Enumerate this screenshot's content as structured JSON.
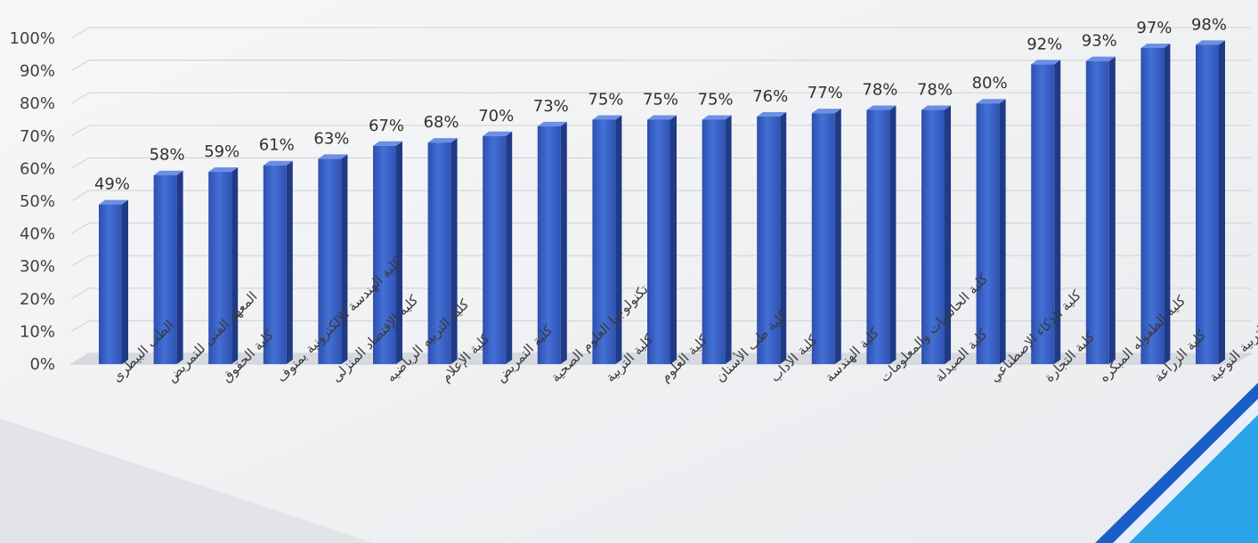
{
  "chart_data": {
    "type": "bar",
    "title": "",
    "xlabel": "",
    "ylabel": "",
    "ylim": [
      0,
      100
    ],
    "yticks": [
      0,
      10,
      20,
      30,
      40,
      50,
      60,
      70,
      80,
      90,
      100
    ],
    "ytick_labels": [
      "0%",
      "10%",
      "20%",
      "30%",
      "40%",
      "50%",
      "60%",
      "70%",
      "80%",
      "90%",
      "100%"
    ],
    "grid": true,
    "legend": "none",
    "bar_color": "#3a5fc4",
    "categories": [
      "الطب البيطرى",
      "المعهد الفنى للتمريض",
      "كلية الحقوق",
      "كلية الهندسة الإلكترونية بمنوف",
      "كلية الإقتصاد المنزلى",
      "كليه التربيه الرياضيه",
      "كلية الإعلام",
      "كلية التمريض",
      "تكنولوجيا العلوم الصحية",
      "كلية التربية",
      "كلية العلوم",
      "كلية طب الأسنان",
      "كلية الأداب",
      "كلية الهندسة",
      "كلية الحاسبات والمعلومات",
      "كلية الصيدلة",
      "كلية الذكاء الإصطناعي",
      "كلية التجارة",
      "كلية الطفوله المبكره",
      "كلية الزراعة",
      "كلية التربية النوعية"
    ],
    "values": [
      49,
      58,
      59,
      61,
      63,
      67,
      68,
      70,
      73,
      75,
      75,
      75,
      76,
      77,
      78,
      78,
      80,
      92,
      93,
      97,
      98
    ],
    "data_labels": [
      "49%",
      "58%",
      "59%",
      "61%",
      "63%",
      "67%",
      "68%",
      "70%",
      "73%",
      "75%",
      "75%",
      "75%",
      "76%",
      "77%",
      "78%",
      "78%",
      "80%",
      "92%",
      "93%",
      "97%",
      "98%"
    ]
  }
}
